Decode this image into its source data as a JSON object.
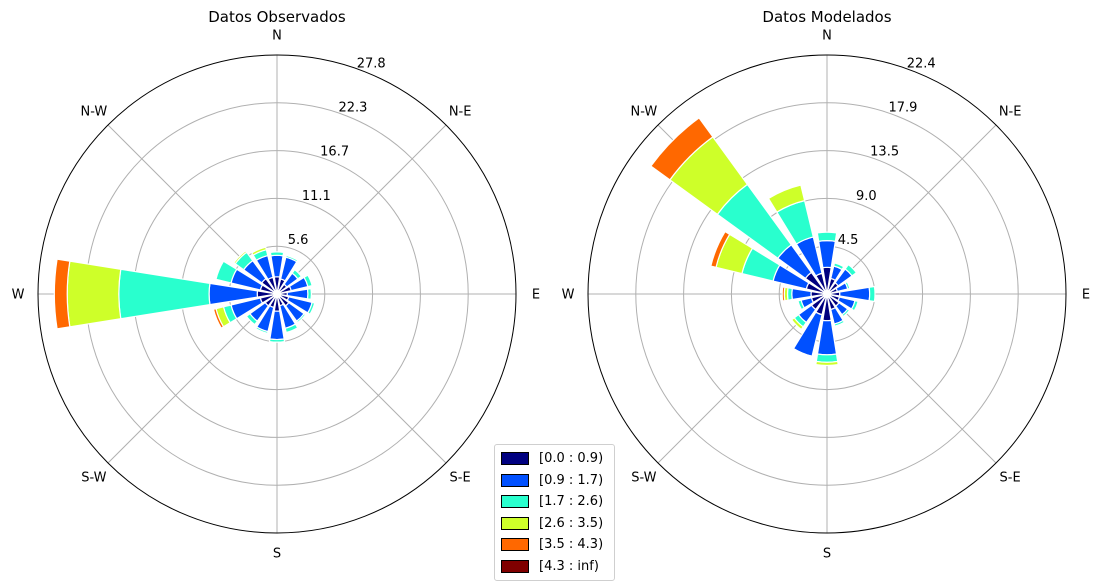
{
  "chart_data": [
    {
      "type": "windrose",
      "title": "Datos Observados",
      "directions": [
        "N",
        "N-E",
        "E",
        "S-E",
        "S",
        "S-W",
        "W",
        "N-W"
      ],
      "radial_ticks": [
        "5.6",
        "11.1",
        "16.7",
        "22.3",
        "27.8"
      ],
      "rmax": 27.8,
      "bin_labels": [
        "[0.0 : 0.9)",
        "[0.9 : 1.7)",
        "[1.7 : 2.6)",
        "[2.6 : 3.5)",
        "[3.5 : 4.3)",
        "[4.3 : inf)"
      ],
      "sector_directions_deg": [
        0,
        22.5,
        45,
        67.5,
        90,
        112.5,
        135,
        157.5,
        180,
        202.5,
        225,
        247.5,
        270,
        292.5,
        315,
        337.5
      ],
      "series": [
        {
          "bin": "[0.0 : 0.9)",
          "values": [
            2.0,
            1.8,
            1.4,
            1.7,
            1.2,
            1.4,
            1.7,
            1.4,
            2.0,
            1.6,
            1.7,
            2.0,
            2.3,
            2.0,
            2.2,
            2.0
          ]
        },
        {
          "bin": "[0.9 : 1.7)",
          "values": [
            2.5,
            2.6,
            1.6,
            2.0,
            2.4,
            2.8,
            2.2,
            2.7,
            3.3,
            2.9,
            2.2,
            3.5,
            5.6,
            3.5,
            2.6,
            2.6
          ]
        },
        {
          "bin": "[1.7 : 2.6)",
          "values": [
            0.4,
            0.2,
            0.5,
            0.5,
            0.4,
            0.3,
            0.2,
            0.5,
            0.3,
            0.2,
            0.5,
            0.9,
            10.5,
            1.8,
            1.2,
            0.7
          ]
        },
        {
          "bin": "[2.6 : 3.5)",
          "values": [
            0,
            0,
            0,
            0,
            0,
            0,
            0,
            0,
            0,
            0,
            0,
            0.9,
            6.0,
            0,
            0.2,
            0.3
          ]
        },
        {
          "bin": "[3.5 : 4.3)",
          "values": [
            0,
            0,
            0,
            0,
            0,
            0,
            0,
            0,
            0,
            0,
            0,
            0.3,
            1.5,
            0,
            0,
            0
          ]
        },
        {
          "bin": "[4.3 : inf)",
          "values": [
            0,
            0,
            0,
            0,
            0,
            0,
            0,
            0,
            0,
            0,
            0,
            0,
            0,
            0,
            0,
            0
          ]
        }
      ]
    },
    {
      "type": "windrose",
      "title": "Datos Modelados",
      "directions": [
        "N",
        "N-E",
        "E",
        "S-E",
        "S",
        "S-W",
        "W",
        "N-W"
      ],
      "radial_ticks": [
        "4.5",
        "9.0",
        "13.5",
        "17.9",
        "22.4"
      ],
      "rmax": 22.4,
      "bin_labels": [
        "[0.0 : 0.9)",
        "[0.9 : 1.7)",
        "[1.7 : 2.6)",
        "[2.6 : 3.5)",
        "[3.5 : 4.3)",
        "[4.3 : inf)"
      ],
      "sector_directions_deg": [
        0,
        22.5,
        45,
        67.5,
        90,
        112.5,
        135,
        157.5,
        180,
        202.5,
        225,
        247.5,
        270,
        292.5,
        315,
        337.5
      ],
      "series": [
        {
          "bin": "[0.0 : 0.9)",
          "values": [
            2.5,
            1.5,
            1.3,
            1.0,
            1.2,
            1.2,
            1.4,
            1.5,
            2.5,
            2.0,
            1.8,
            1.5,
            1.5,
            2.0,
            2.5,
            2.0
          ]
        },
        {
          "bin": "[0.9 : 1.7)",
          "values": [
            2.5,
            1.2,
            1.6,
            1.0,
            2.8,
            1.5,
            1.0,
            1.4,
            3.2,
            4.0,
            1.5,
            1.0,
            1.8,
            3.2,
            3.2,
            3.5
          ]
        },
        {
          "bin": "[1.7 : 2.6)",
          "values": [
            0.8,
            0.3,
            0.5,
            0.2,
            0.5,
            0.3,
            0.2,
            0.2,
            0.7,
            0.1,
            0.5,
            0.3,
            0.4,
            3.0,
            7.0,
            3.5
          ]
        },
        {
          "bin": "[2.6 : 3.5)",
          "values": [
            0,
            0,
            0,
            0,
            0,
            0,
            0,
            0,
            0.3,
            0,
            0.3,
            0,
            0.3,
            2.5,
            5.5,
            1.5
          ]
        },
        {
          "bin": "[3.5 : 4.3)",
          "values": [
            0,
            0,
            0,
            0,
            0,
            0,
            0,
            0,
            0,
            0,
            0,
            0,
            0.2,
            0.5,
            2.2,
            0
          ]
        },
        {
          "bin": "[4.3 : inf)",
          "values": [
            0,
            0,
            0,
            0,
            0,
            0,
            0,
            0,
            0,
            0,
            0,
            0,
            0,
            0,
            0,
            0
          ]
        }
      ]
    }
  ],
  "legend": {
    "placement": "bottom-center",
    "entries": [
      {
        "label": "[0.0 : 0.9)",
        "color": "#000080"
      },
      {
        "label": "[0.9 : 1.7)",
        "color": "#0050ff"
      },
      {
        "label": "[1.7 : 2.6)",
        "color": "#29ffce"
      },
      {
        "label": "[2.6 : 3.5)",
        "color": "#ceff29"
      },
      {
        "label": "[3.5 : 4.3)",
        "color": "#ff6800"
      },
      {
        "label": "[4.3 : inf)",
        "color": "#800000"
      }
    ]
  },
  "colors": {
    "grid": "#b0b0b0",
    "bar_edge": "#ffffff"
  }
}
